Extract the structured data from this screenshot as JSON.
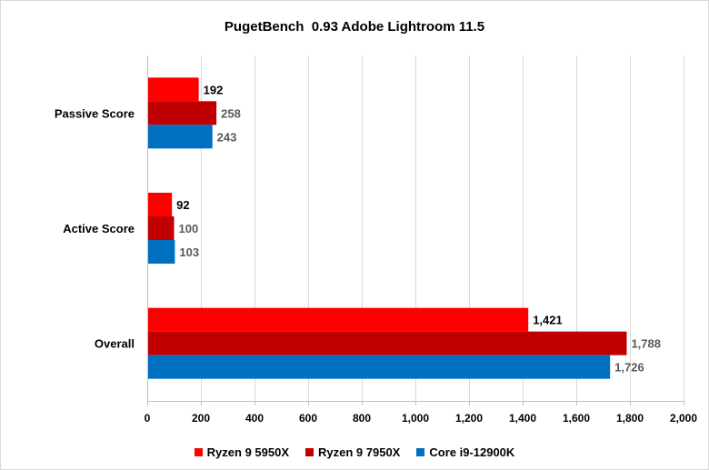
{
  "chart_data": {
    "type": "bar",
    "orientation": "horizontal",
    "title": "PugetBench  0.93 Adobe Lightroom 11.5",
    "categories": [
      "Passive Score",
      "Active Score",
      "Overall"
    ],
    "series": [
      {
        "name": "Ryzen 9 5950X",
        "color": "#ff0000",
        "values": [
          192,
          92,
          1421
        ],
        "labels": [
          "192",
          "92",
          "1,421"
        ],
        "label_color": "#000000"
      },
      {
        "name": "Ryzen 9 7950X",
        "color": "#c00000",
        "values": [
          258,
          100,
          1788
        ],
        "labels": [
          "258",
          "100",
          "1,788"
        ],
        "label_color": "#595959"
      },
      {
        "name": "Core i9-12900K",
        "color": "#0070c0",
        "values": [
          243,
          103,
          1726
        ],
        "labels": [
          "243",
          "103",
          "1,726"
        ],
        "label_color": "#595959"
      }
    ],
    "xlim": [
      0,
      2000
    ],
    "xticks": [
      0,
      200,
      400,
      600,
      800,
      1000,
      1200,
      1400,
      1600,
      1800,
      2000
    ],
    "xtick_labels": [
      "0",
      "200",
      "400",
      "600",
      "800",
      "1,000",
      "1,200",
      "1,400",
      "1,600",
      "1,800",
      "2,000"
    ],
    "grid": true,
    "legend_position": "bottom",
    "xlabel": "",
    "ylabel": ""
  }
}
